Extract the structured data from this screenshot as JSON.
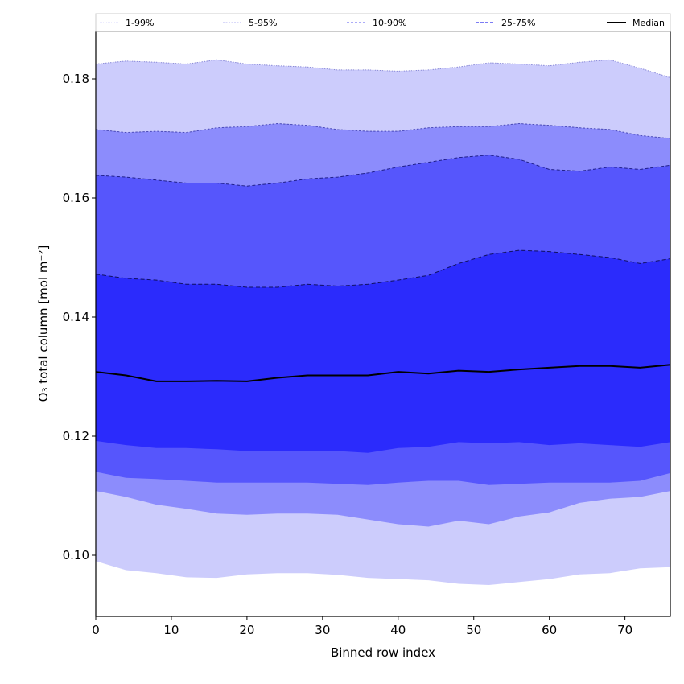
{
  "chart_data": {
    "type": "area",
    "title": "",
    "xlabel": "Binned row index",
    "ylabel": "O₃ total column [mol m⁻²]",
    "xlim": [
      0,
      76
    ],
    "ylim": [
      0.09,
      0.188
    ],
    "xticks": [
      0,
      10,
      20,
      30,
      40,
      50,
      60,
      70
    ],
    "xtick_labels": [
      "0",
      "10",
      "20",
      "30",
      "40",
      "50",
      "60",
      "70"
    ],
    "yticks": [
      0.1,
      0.12,
      0.14,
      0.16,
      0.18
    ],
    "ytick_labels": [
      "0.10",
      "0.12",
      "0.14",
      "0.16",
      "0.18"
    ],
    "grid": false,
    "legend_placement": "top (above plot, single row)",
    "x": [
      0,
      4,
      8,
      12,
      16,
      20,
      24,
      28,
      32,
      36,
      40,
      44,
      48,
      52,
      56,
      60,
      64,
      68,
      72,
      76
    ],
    "bands": [
      {
        "name": "1-99%",
        "color": "#ccccfc",
        "lower": [
          0.099,
          0.0975,
          0.097,
          0.0963,
          0.0962,
          0.0968,
          0.097,
          0.097,
          0.0967,
          0.0962,
          0.096,
          0.0958,
          0.0952,
          0.095,
          0.0955,
          0.096,
          0.0968,
          0.097,
          0.0978,
          0.098
        ],
        "upper": [
          0.1825,
          0.183,
          0.1828,
          0.1825,
          0.1832,
          0.1825,
          0.1822,
          0.182,
          0.1815,
          0.1815,
          0.1813,
          0.1815,
          0.182,
          0.1827,
          0.1825,
          0.1822,
          0.1828,
          0.1832,
          0.1818,
          0.1802
        ]
      },
      {
        "name": "5-95%",
        "color": "#8c8cfc",
        "lower": [
          0.1108,
          0.1098,
          0.1085,
          0.1078,
          0.107,
          0.1068,
          0.107,
          0.107,
          0.1068,
          0.106,
          0.1052,
          0.1048,
          0.1058,
          0.1052,
          0.1065,
          0.1072,
          0.1088,
          0.1095,
          0.1098,
          0.1108
        ],
        "upper": [
          0.1715,
          0.171,
          0.1712,
          0.171,
          0.1718,
          0.172,
          0.1725,
          0.1722,
          0.1715,
          0.1712,
          0.1712,
          0.1718,
          0.172,
          0.172,
          0.1725,
          0.1722,
          0.1718,
          0.1715,
          0.1705,
          0.17
        ]
      },
      {
        "name": "10-90%",
        "color": "#5656fc",
        "lower": [
          0.114,
          0.113,
          0.1128,
          0.1125,
          0.1122,
          0.1122,
          0.1122,
          0.1122,
          0.112,
          0.1118,
          0.1122,
          0.1125,
          0.1125,
          0.1118,
          0.112,
          0.1122,
          0.1122,
          0.1122,
          0.1125,
          0.1138
        ],
        "upper": [
          0.1638,
          0.1635,
          0.163,
          0.1625,
          0.1625,
          0.162,
          0.1625,
          0.1632,
          0.1635,
          0.1642,
          0.1652,
          0.166,
          0.1668,
          0.1672,
          0.1665,
          0.1648,
          0.1645,
          0.1652,
          0.1648,
          0.1655
        ]
      },
      {
        "name": "25-75%",
        "color": "#2b2bfc",
        "lower": [
          0.1192,
          0.1185,
          0.118,
          0.118,
          0.1178,
          0.1175,
          0.1175,
          0.1175,
          0.1175,
          0.1172,
          0.118,
          0.1182,
          0.119,
          0.1188,
          0.119,
          0.1185,
          0.1188,
          0.1185,
          0.1182,
          0.119
        ],
        "upper": [
          0.1472,
          0.1465,
          0.1462,
          0.1455,
          0.1455,
          0.145,
          0.145,
          0.1455,
          0.1452,
          0.1455,
          0.1462,
          0.147,
          0.149,
          0.1505,
          0.1512,
          0.151,
          0.1505,
          0.15,
          0.149,
          0.1498
        ]
      }
    ],
    "median": {
      "name": "Median",
      "color": "#000000",
      "values": [
        0.1308,
        0.1302,
        0.1292,
        0.1292,
        0.1293,
        0.1292,
        0.1298,
        0.1302,
        0.1302,
        0.1302,
        0.1308,
        0.1305,
        0.131,
        0.1308,
        0.1312,
        0.1315,
        0.1318,
        0.1318,
        0.1315,
        0.132
      ]
    },
    "legend": [
      {
        "label": "1-99%",
        "color": "#ccccfc"
      },
      {
        "label": "5-95%",
        "color": "#9a9af0"
      },
      {
        "label": "10-90%",
        "color": "#7a7af4"
      },
      {
        "label": "25-75%",
        "color": "#5050f0"
      },
      {
        "label": "Median",
        "color": "#000000"
      }
    ]
  }
}
